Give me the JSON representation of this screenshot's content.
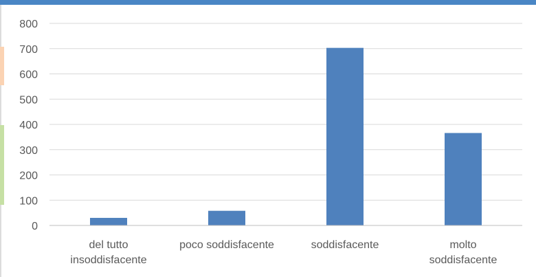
{
  "theme": {
    "top_strip_color": "#4a86c5",
    "accent_orange": "#fbd3b3",
    "accent_green": "#c6e0a4",
    "gridline_color": "#d9d9d9",
    "axis_color": "#bfbfbf"
  },
  "chart_data": {
    "type": "bar",
    "title": "",
    "xlabel": "",
    "ylabel": "",
    "categories": [
      "del tutto insoddisfacente",
      "poco soddisfacente",
      "soddisfacente",
      "molto soddisfacente"
    ],
    "category_label_lines": [
      [
        "del tutto",
        "insoddisfacente"
      ],
      [
        "poco soddisfacente"
      ],
      [
        "soddisfacente"
      ],
      [
        "molto",
        "soddisfacente"
      ]
    ],
    "values": [
      30,
      58,
      703,
      366
    ],
    "ylim": [
      0,
      800
    ],
    "yticks": [
      "0",
      "100",
      "200",
      "300",
      "400",
      "500",
      "600",
      "700",
      "800"
    ],
    "bar_color": "#4f81bd",
    "grid": true,
    "legend": "none"
  }
}
